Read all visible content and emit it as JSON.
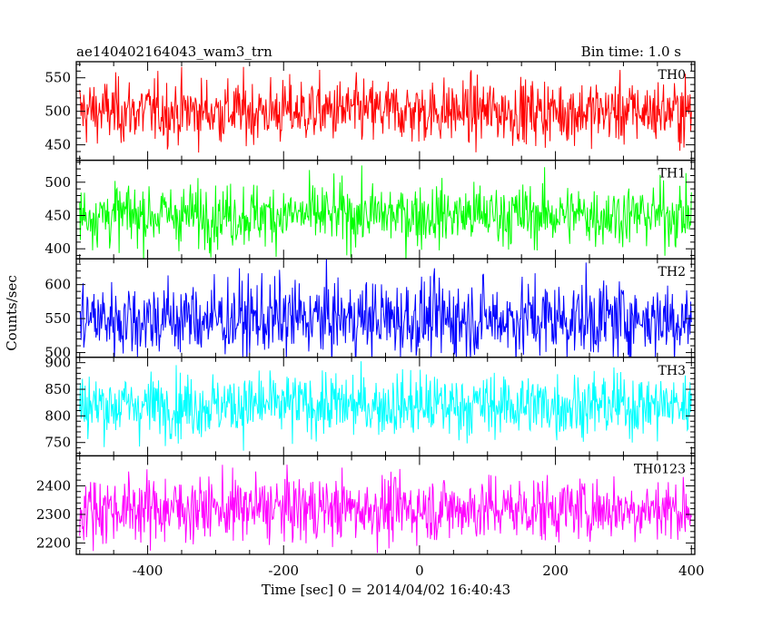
{
  "header": {
    "title": "ae140402164043_wam3_trn",
    "bin_time": "Bin time: 1.0 s"
  },
  "axes": {
    "xlabel": "Time [sec] 0 = 2014/04/02 16:40:43",
    "ylabel": "Counts/sec"
  },
  "chart_data": {
    "type": "line",
    "title": "ae140402164043_wam3_trn",
    "subtitle": "Bin time: 1.0 s",
    "xlabel": "Time [sec] 0 = 2014/04/02 16:40:43",
    "ylabel": "Counts/sec",
    "xlim": [
      -505,
      405
    ],
    "x_ticks": [
      -400,
      -200,
      0,
      200,
      400
    ],
    "x_range": [
      -500,
      400
    ],
    "bin_seconds": 1.0,
    "grid": false,
    "panels": [
      {
        "name": "TH0",
        "color": "#ff0000",
        "ylim": [
          427,
          574
        ],
        "y_ticks": [
          450,
          500,
          550
        ],
        "mean": 500,
        "spread": 48
      },
      {
        "name": "TH1",
        "color": "#00ff00",
        "ylim": [
          385,
          533
        ],
        "y_ticks": [
          400,
          450,
          500
        ],
        "mean": 451,
        "spread": 47
      },
      {
        "name": "TH2",
        "color": "#0000ff",
        "ylim": [
          493,
          638
        ],
        "y_ticks": [
          500,
          550,
          600
        ],
        "mean": 550,
        "spread": 58
      },
      {
        "name": "TH3",
        "color": "#00ffff",
        "ylim": [
          725,
          910
        ],
        "y_ticks": [
          750,
          800,
          850,
          900
        ],
        "mean": 820,
        "spread": 60
      },
      {
        "name": "TH0123",
        "color": "#ff00ff",
        "ylim": [
          2160,
          2505
        ],
        "y_ticks": [
          2200,
          2300,
          2400
        ],
        "mean": 2320,
        "spread": 115
      }
    ]
  }
}
